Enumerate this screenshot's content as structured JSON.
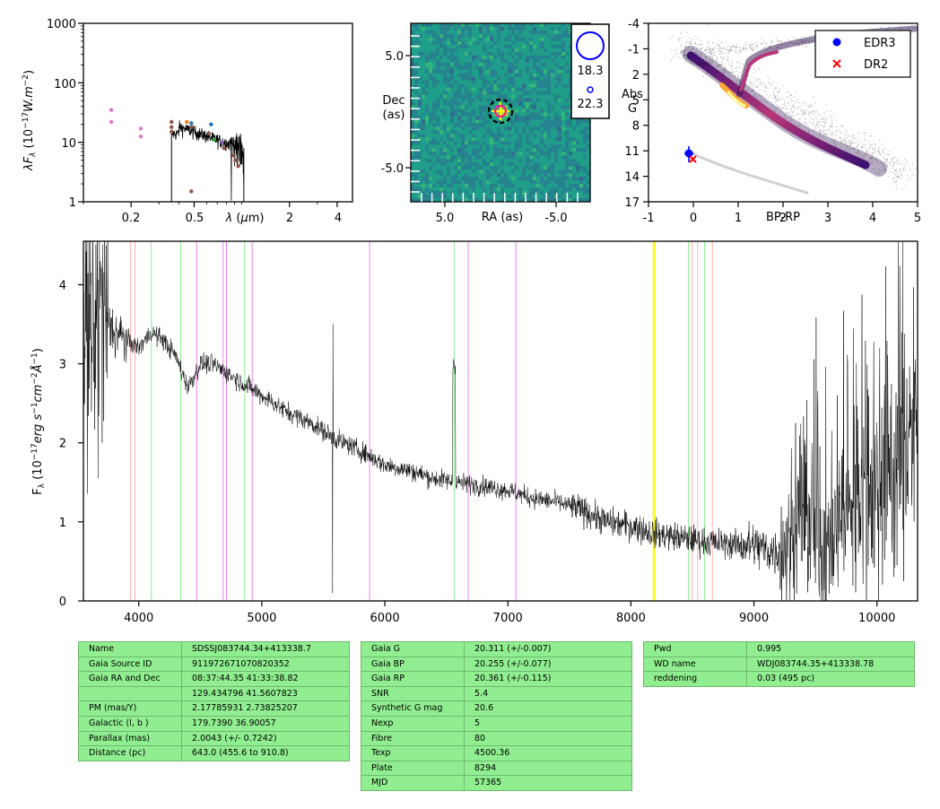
{
  "sed": {
    "ylabel": "λF_λ (10^-17 W.m^-2)",
    "xlabel": "λ (μm)",
    "yticks": [
      "1",
      "10",
      "100",
      "1000"
    ],
    "xticks": [
      "0.2",
      "0.5",
      "2",
      "4"
    ],
    "scale": "log-log",
    "ylim": [
      1,
      1000
    ],
    "xlim": [
      0.1,
      5.0
    ]
  },
  "image": {
    "ylabel": "Dec\n(as)",
    "xlabel": "RA (as)",
    "yticks": [
      "5.0",
      "-5.0"
    ],
    "xticks": [
      "5.0",
      "-5.0"
    ],
    "legend": [
      "18.3",
      "22.3"
    ],
    "colors": {
      "edr3": "#0000ff",
      "dr2": "#ff0000",
      "target": "#ff1493",
      "ring": "#000000",
      "cross": "#ffff00"
    }
  },
  "hrd": {
    "ylabel": "Abs\nG",
    "xlabel": "BP-RP",
    "yticks": [
      "-4",
      "-1",
      "2",
      "5",
      "8",
      "11",
      "14",
      "17"
    ],
    "xticks": [
      "-1",
      "0",
      "1",
      "2",
      "3",
      "4",
      "5"
    ],
    "legend": [
      {
        "label": "EDR3",
        "marker": "dot",
        "color": "#0000ff"
      },
      {
        "label": "DR2",
        "marker": "x",
        "color": "#ff0000"
      }
    ]
  },
  "spectrum": {
    "ylabel": "F_λ (10^-17 erg s^-1 cm^-2 Å^-1)",
    "yticks": [
      "0",
      "1",
      "2",
      "3",
      "4"
    ],
    "xticks": [
      "4000",
      "5000",
      "6000",
      "7000",
      "8000",
      "9000",
      "10000"
    ]
  },
  "chart_data": [
    {
      "type": "scatter",
      "name": "sed",
      "xlabel": "λ (μm)",
      "ylabel": "λF_λ (10^-17 W.m^-2)",
      "xscale": "log",
      "yscale": "log",
      "xlim": [
        0.1,
        5.0
      ],
      "ylim": [
        1,
        1000
      ],
      "points": [
        {
          "x": 0.15,
          "y": 35,
          "color": "#e377c2"
        },
        {
          "x": 0.15,
          "y": 22,
          "color": "#e377c2"
        },
        {
          "x": 0.23,
          "y": 17,
          "color": "#e377c2"
        },
        {
          "x": 0.23,
          "y": 12.5,
          "color": "#e377c2"
        },
        {
          "x": 0.36,
          "y": 22,
          "color": "#8c564b"
        },
        {
          "x": 0.36,
          "y": 18,
          "color": "#8c564b"
        },
        {
          "x": 0.36,
          "y": 15,
          "color": "#8c564b"
        },
        {
          "x": 0.45,
          "y": 22,
          "color": "#ff7f0e"
        },
        {
          "x": 0.48,
          "y": 21,
          "color": "#1f77b4"
        },
        {
          "x": 0.48,
          "y": 18,
          "color": "#8c564b"
        },
        {
          "x": 0.48,
          "y": 1.5,
          "color": "#8c564b"
        },
        {
          "x": 0.62,
          "y": 14,
          "color": "#8c564b"
        },
        {
          "x": 0.64,
          "y": 20,
          "color": "#1f77b4"
        },
        {
          "x": 0.67,
          "y": 11,
          "color": "#2ca02c"
        },
        {
          "x": 0.75,
          "y": 10,
          "color": "#9467bd"
        },
        {
          "x": 0.77,
          "y": 8,
          "color": "#8c564b"
        },
        {
          "x": 0.89,
          "y": 6,
          "color": "#8c564b"
        },
        {
          "x": 0.91,
          "y": 5,
          "color": "#8c564b"
        },
        {
          "x": 0.95,
          "y": 4,
          "color": "#8c564b"
        }
      ],
      "spectrum_overlay": {
        "x_range_um": [
          0.36,
          1.03
        ],
        "y_level": [
          10,
          16
        ],
        "color": "#000000"
      }
    },
    {
      "type": "heatmap",
      "name": "cutout",
      "xlabel": "RA (as)",
      "ylabel": "Dec (as)",
      "xlim": [
        8.0,
        -8.0
      ],
      "ylim": [
        -8.0,
        8.0
      ],
      "source_position": {
        "ra": 0.0,
        "dec": 0.0
      },
      "legend": [
        {
          "label": "18.3",
          "marker": "circle-large",
          "color": "#0000ff"
        },
        {
          "label": "22.3",
          "marker": "circle-small",
          "color": "#0000ff"
        }
      ]
    },
    {
      "type": "scatter",
      "name": "hr-diagram",
      "xlabel": "BP-RP",
      "ylabel": "Abs G",
      "xlim": [
        -1,
        5
      ],
      "ylim": [
        17,
        -4
      ],
      "series": [
        {
          "name": "EDR3",
          "color": "#0000ff",
          "marker": "dot",
          "x": [
            -0.1
          ],
          "y": [
            11.2
          ],
          "yerr": [
            0.6
          ],
          "xerr": [
            0.1
          ]
        },
        {
          "name": "DR2",
          "color": "#ff0000",
          "marker": "x",
          "x": [
            -0.02
          ],
          "y": [
            11.8
          ]
        }
      ],
      "background": "density of field stars (main sequence, giant branch, white dwarf sequence)"
    },
    {
      "type": "line",
      "name": "optical-spectrum",
      "xlabel": "",
      "ylabel": "F_λ (10^-17 erg s^-1 cm^-2 Å^-1)",
      "xlim": [
        3550,
        10330
      ],
      "ylim": [
        0,
        4.55
      ],
      "x": [
        3600,
        3700,
        3800,
        3900,
        4000,
        4100,
        4200,
        4300,
        4400,
        4500,
        4600,
        4700,
        4800,
        4900,
        5000,
        5200,
        5400,
        5600,
        5800,
        6000,
        6200,
        6400,
        6600,
        6800,
        7000,
        7200,
        7400,
        7600,
        7800,
        8000,
        8200,
        8400,
        8600,
        8800,
        9000,
        9200,
        9400,
        9600,
        9800,
        10000,
        10200,
        10300
      ],
      "y": [
        3.3,
        3.6,
        3.4,
        3.3,
        3.2,
        3.4,
        3.3,
        3.1,
        2.7,
        3.0,
        3.0,
        2.9,
        2.8,
        2.7,
        2.6,
        2.4,
        2.25,
        2.05,
        1.9,
        1.72,
        1.65,
        1.55,
        1.5,
        1.45,
        1.4,
        1.3,
        1.25,
        1.15,
        1.0,
        0.95,
        0.85,
        0.8,
        0.75,
        0.72,
        0.7,
        0.6,
        0.9,
        0.6,
        1.2,
        1.5,
        1.8,
        2.0
      ],
      "reference_lines": [
        {
          "x": 3934,
          "color": "#ffb0b0"
        },
        {
          "x": 3969,
          "color": "#ffb0b0"
        },
        {
          "x": 4102,
          "color": "#90ee90"
        },
        {
          "x": 4341,
          "color": "#90ee90"
        },
        {
          "x": 4471,
          "color": "#ee82ee"
        },
        {
          "x": 4686,
          "color": "#ee82ee"
        },
        {
          "x": 4713,
          "color": "#ee82ee"
        },
        {
          "x": 4861,
          "color": "#90ee90"
        },
        {
          "x": 4922,
          "color": "#ee82ee"
        },
        {
          "x": 5876,
          "color": "#ee82ee"
        },
        {
          "x": 6563,
          "color": "#90ee90"
        },
        {
          "x": 6678,
          "color": "#ee82ee"
        },
        {
          "x": 7065,
          "color": "#ee82ee"
        },
        {
          "x": 8183,
          "color": "#ffff00"
        },
        {
          "x": 8195,
          "color": "#ffff00"
        },
        {
          "x": 8467,
          "color": "#90ee90"
        },
        {
          "x": 8498,
          "color": "#ffb0b0"
        },
        {
          "x": 8542,
          "color": "#ffb0b0"
        },
        {
          "x": 8598,
          "color": "#90ee90"
        },
        {
          "x": 8662,
          "color": "#ffb0b0"
        }
      ]
    }
  ],
  "tables": {
    "left": [
      [
        "Name",
        "SDSSJ083744.34+413338.7"
      ],
      [
        "Gaia Source ID",
        "911972671070820352"
      ],
      [
        "Gaia RA and Dec",
        "08:37:44.35     41:33:38.82"
      ],
      [
        "",
        "129.434796     41.5607823"
      ],
      [
        "PM (mas/Y)",
        "2.17785931     2.73825207"
      ],
      [
        "Galactic (l, b )",
        "179.7390     36.90057"
      ],
      [
        "Parallax (mas)",
        "2.0043 (+/- 0.7242)"
      ],
      [
        "Distance (pc)",
        "643.0 (455.6 to 910.8)"
      ]
    ],
    "middle": [
      [
        "Gaia G",
        "20.311 (+/-0.007)"
      ],
      [
        "Gaia BP",
        "20.255 (+/-0.077)"
      ],
      [
        "Gaia RP",
        "20.361 (+/-0.115)"
      ],
      [
        "SNR",
        "5.4"
      ],
      [
        "Synthetic G mag",
        "20.6"
      ],
      [
        "Nexp",
        "5"
      ],
      [
        "Fibre",
        "80"
      ],
      [
        "Texp",
        "4500.36"
      ],
      [
        "Plate",
        "8294"
      ],
      [
        "MJD",
        "57365"
      ]
    ],
    "right": [
      [
        "Pwd",
        "0.995"
      ],
      [
        "WD name",
        "WDJ083744.35+413338.78"
      ],
      [
        "reddening",
        "0.03 (495 pc)"
      ]
    ]
  }
}
